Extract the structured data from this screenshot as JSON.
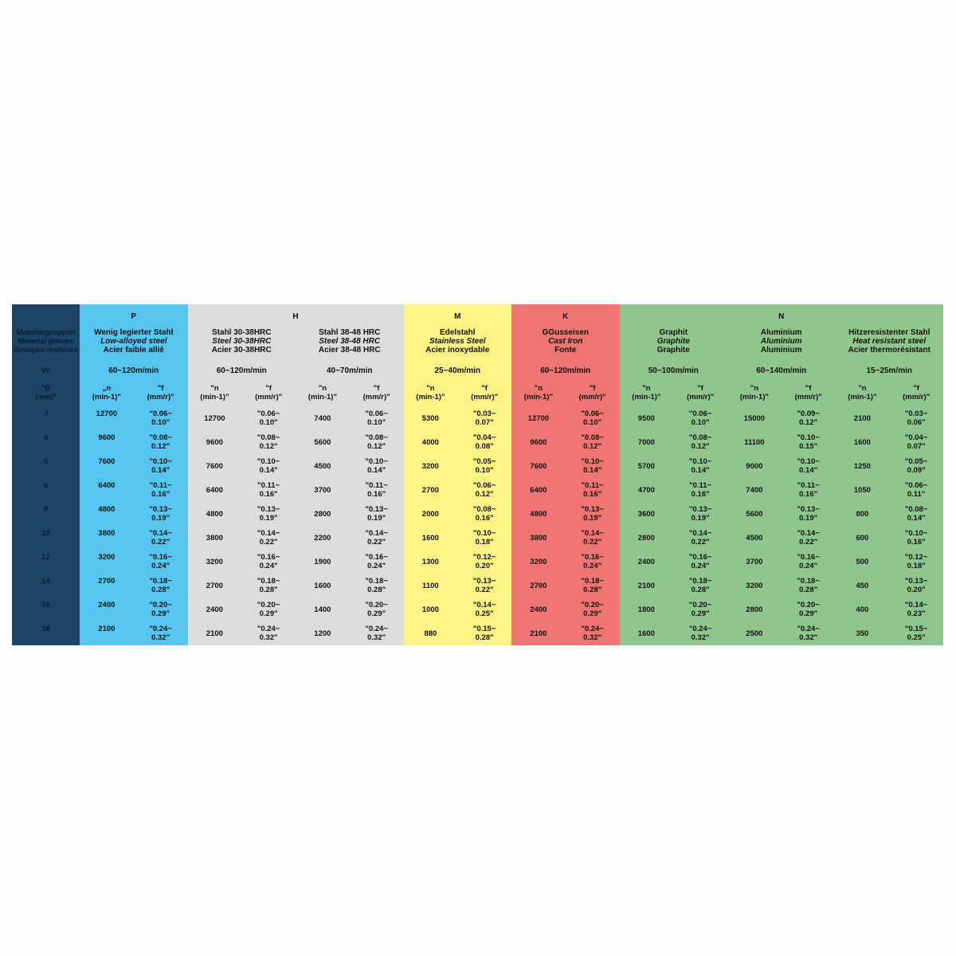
{
  "left": {
    "label_de": "Materialgruppen",
    "label_en": "Material groups",
    "label_fr": "Groupes matières",
    "vc_label": "Vc",
    "dia_label": "\"Ø\n(mm)\"",
    "diameters": [
      "3",
      "4",
      "5",
      "6",
      "8",
      "10",
      "12",
      "14",
      "16",
      "18"
    ]
  },
  "colors": {
    "left": "#1b4467",
    "P": "#56c5f0",
    "H": "#dcdcdc",
    "M": "#fdf284",
    "K": "#ef7573",
    "N": "#8fc68d"
  },
  "groups": [
    {
      "letter": "P",
      "color": "#56c5f0",
      "materials": [
        {
          "de": "Wenig legierter Stahl",
          "en": "Low-alloyed steel",
          "fr": "Acier faible allié",
          "vc": "60~120m/min",
          "n_label": "„n\n(min-1)\"",
          "f_label": "\"f\n(mm/r)\"",
          "n": [
            "12700",
            "9600",
            "7600",
            "6400",
            "4800",
            "3800",
            "3200",
            "2700",
            "2400",
            "2100"
          ],
          "f": [
            "\"0.06~\n0.10\"",
            "\"0.08~\n0.12\"",
            "\"0.10~\n0.14\"",
            "\"0.11~\n0.16\"",
            "\"0.13~\n0.19\"",
            "\"0.14~\n0.22\"",
            "\"0.16~\n0.24\"",
            "\"0.18~\n0.28\"",
            "\"0.20~\n0.29\"",
            "\"0.24~\n0.32\""
          ]
        }
      ]
    },
    {
      "letter": "H",
      "color": "#dcdcdc",
      "materials": [
        {
          "de": "Stahl 30-38HRC",
          "en": "Steel 30-38HRC",
          "fr": "Acier 30-38HRC",
          "vc": "60~120m/min",
          "n_label": "\"n\n(min-1)\"",
          "f_label": "\"f\n(mm/r)\"",
          "n": [
            "12700",
            "9600",
            "7600",
            "6400",
            "4800",
            "3800",
            "3200",
            "2700",
            "2400",
            "2100"
          ],
          "f": [
            "\"0.06~\n0.10\"",
            "\"0.08~\n0.12\"",
            "\"0.10~\n0.14\"",
            "\"0.11~\n0.16\"",
            "\"0.13~\n0.19\"",
            "\"0.14~\n0.22\"",
            "\"0.16~\n0.24\"",
            "\"0.18~\n0.28\"",
            "\"0.20~\n0.29\"",
            "\"0.24~\n0.32\""
          ]
        },
        {
          "de": "Stahl 38-48 HRC",
          "en": "Steel 38-48 HRC",
          "fr": "Acier 38-48 HRC",
          "vc": "40~70m/min",
          "n_label": "\"n\n(min-1)\"",
          "f_label": "\"f\n(mm/r)\"",
          "n": [
            "7400",
            "5600",
            "4500",
            "3700",
            "2800",
            "2200",
            "1900",
            "1600",
            "1400",
            "1200"
          ],
          "f": [
            "\"0.06~\n0.10\"",
            "\"0.08~\n0.12\"",
            "\"0.10~\n0.14\"",
            "\"0.11~\n0.16\"",
            "\"0.13~\n0.19\"",
            "\"0.14~\n0.22\"",
            "\"0.16~\n0.24\"",
            "\"0.18~\n0.28\"",
            "\"0.20~\n0.29\"",
            "\"0.24~\n0.32\""
          ]
        }
      ]
    },
    {
      "letter": "M",
      "color": "#fdf284",
      "materials": [
        {
          "de": "Edelstahl",
          "en": "Stainless Steel",
          "fr": "Acier inoxydable",
          "vc": "25~40m/min",
          "n_label": "\"n\n(min-1)\"",
          "f_label": "\"f\n(mm/r)\"",
          "n": [
            "5300",
            "4000",
            "3200",
            "2700",
            "2000",
            "1600",
            "1300",
            "1100",
            "1000",
            "880"
          ],
          "f": [
            "\"0.03~\n0.07\"",
            "\"0.04~\n0.08\"",
            "\"0.05~\n0.10\"",
            "\"0.06~\n0.12\"",
            "\"0.08~\n0.16\"",
            "\"0.10~\n0.18\"",
            "\"0.12~\n0.20\"",
            "\"0.13~\n0.22\"",
            "\"0.14~\n0.25\"",
            "\"0.15~\n0.28\""
          ]
        }
      ]
    },
    {
      "letter": "K",
      "color": "#ef7573",
      "materials": [
        {
          "de": "GGusseisen",
          "en": "Cast Iron",
          "fr": "Fonte",
          "vc": "60~120m/min",
          "n_label": "\"n\n(min-1)\"",
          "f_label": "\"f\n(mm/r)\"",
          "n": [
            "12700",
            "9600",
            "7600",
            "6400",
            "4800",
            "3800",
            "3200",
            "2700",
            "2400",
            "2100"
          ],
          "f": [
            "\"0.06~\n0.10\"",
            "\"0.08~\n0.12\"",
            "\"0.10~\n0.14\"",
            "\"0.11~\n0.16\"",
            "\"0.13~\n0.19\"",
            "\"0.14~\n0.22\"",
            "\"0.16~\n0.24\"",
            "\"0.18~\n0.28\"",
            "\"0.20~\n0.29\"",
            "\"0.24~\n0.32\""
          ]
        }
      ]
    },
    {
      "letter": "N",
      "color": "#8fc68d",
      "materials": [
        {
          "de": "Graphit",
          "en": "Graphite",
          "fr": "Graphite",
          "vc": "50~100m/min",
          "n_label": "\"n\n(min-1)\"",
          "f_label": "\"f\n(mm/r)\"",
          "n": [
            "9500",
            "7000",
            "5700",
            "4700",
            "3600",
            "2800",
            "2400",
            "2100",
            "1800",
            "1600"
          ],
          "f": [
            "\"0.06~\n0.10\"",
            "\"0.08~\n0.12\"",
            "\"0.10~\n0.14\"",
            "\"0.11~\n0.16\"",
            "\"0.13~\n0.19\"",
            "\"0.14~\n0.22\"",
            "\"0.16~\n0.24\"",
            "\"0.18~\n0.28\"",
            "\"0.20~\n0.29\"",
            "\"0.24~\n0.32\""
          ]
        },
        {
          "de": "Aluminium",
          "en": "Aluminium",
          "fr": "Aluminium",
          "vc": "60~140m/min",
          "n_label": "\"n\n(min-1)\"",
          "f_label": "\"f\n(mm/r)\"",
          "n": [
            "15000",
            "11100",
            "9000",
            "7400",
            "5600",
            "4500",
            "3700",
            "3200",
            "2800",
            "2500"
          ],
          "f": [
            "\"0.09~\n0.12\"",
            "\"0.10~\n0.15\"",
            "\"0.10~\n0.14\"",
            "\"0.11~\n0.16\"",
            "\"0.13~\n0.19\"",
            "\"0.14~\n0.22\"",
            "\"0.16~\n0.24\"",
            "\"0.18~\n0.28\"",
            "\"0.20~\n0.29\"",
            "\"0.24~\n0.32\""
          ]
        },
        {
          "de": "Hitzeresistenter Stahl",
          "en": "Heat resistant steel",
          "fr": "Acier thermorésistant",
          "vc": "15~25m/min",
          "n_label": "\"n\n(min-1)\"",
          "f_label": "\"f\n(mm/r)\"",
          "n": [
            "2100",
            "1600",
            "1250",
            "1050",
            "800",
            "600",
            "500",
            "450",
            "400",
            "350"
          ],
          "f": [
            "\"0.03~\n0.06\"",
            "\"0.04~\n0.07\"",
            "\"0.05~\n0.09\"",
            "\"0.06~\n0.11\"",
            "\"0.08~\n0.14\"",
            "\"0.10~\n0.16\"",
            "\"0.12~\n0.18\"",
            "\"0.13~\n0.20\"",
            "\"0.14~\n0.23\"",
            "\"0.15~\n0.25\""
          ]
        }
      ]
    }
  ]
}
